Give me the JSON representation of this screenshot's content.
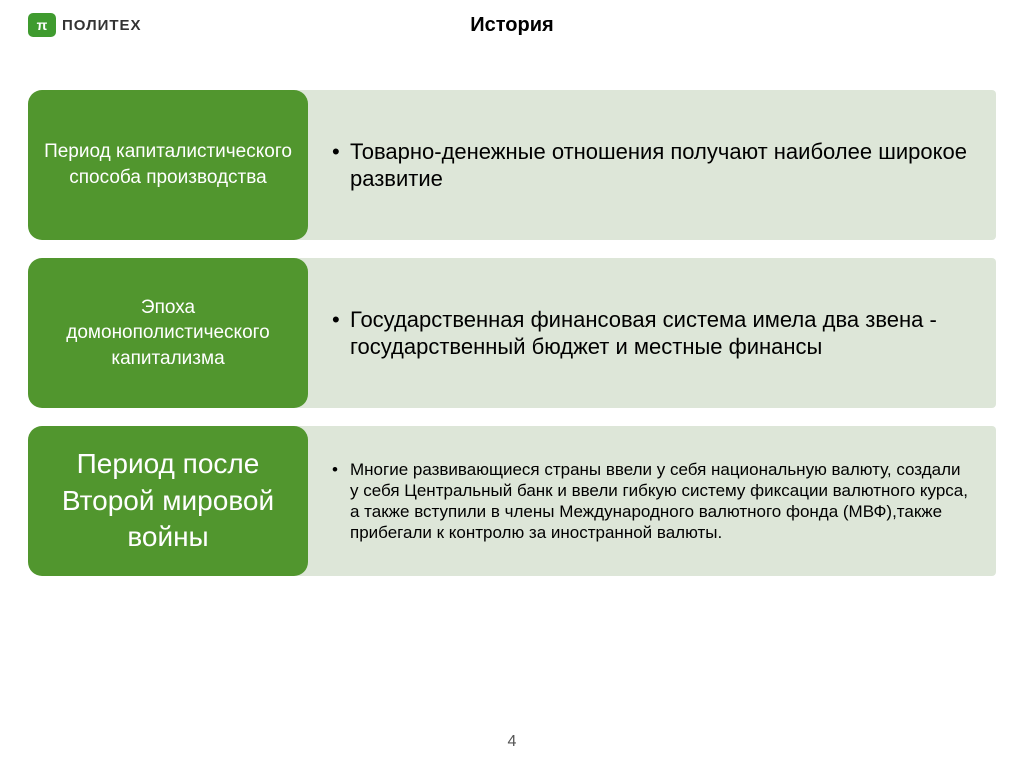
{
  "header": {
    "logo_symbol": "π",
    "logo_text": "ПОЛИТЕХ",
    "title": "История"
  },
  "rows": [
    {
      "label": "Период капиталистического способа производства",
      "label_size": "small",
      "text": "Товарно-денежные отношения получают наиболее широкое развитие",
      "text_size": "large"
    },
    {
      "label": "Эпоха домонополистического капитализма",
      "label_size": "small",
      "text": "Государственная финансовая система имела два звена - государственный бюджет и местные финансы",
      "text_size": "large"
    },
    {
      "label": "Период после Второй мировой войны",
      "label_size": "large",
      "text": "Многие развивающиеся страны ввели у себя национальную валюту, создали у себя Центральный банк и ввели гибкую систему фиксации валютного курса, а также вступили в члены Международного валютного фонда (МВФ),также прибегали к контролю за иностранной валюты.",
      "text_size": "small"
    }
  ],
  "page_number": "4",
  "colors": {
    "left_box_bg": "#51962e",
    "right_box_bg": "#dde6d8",
    "logo_bg": "#3f9b2f"
  }
}
